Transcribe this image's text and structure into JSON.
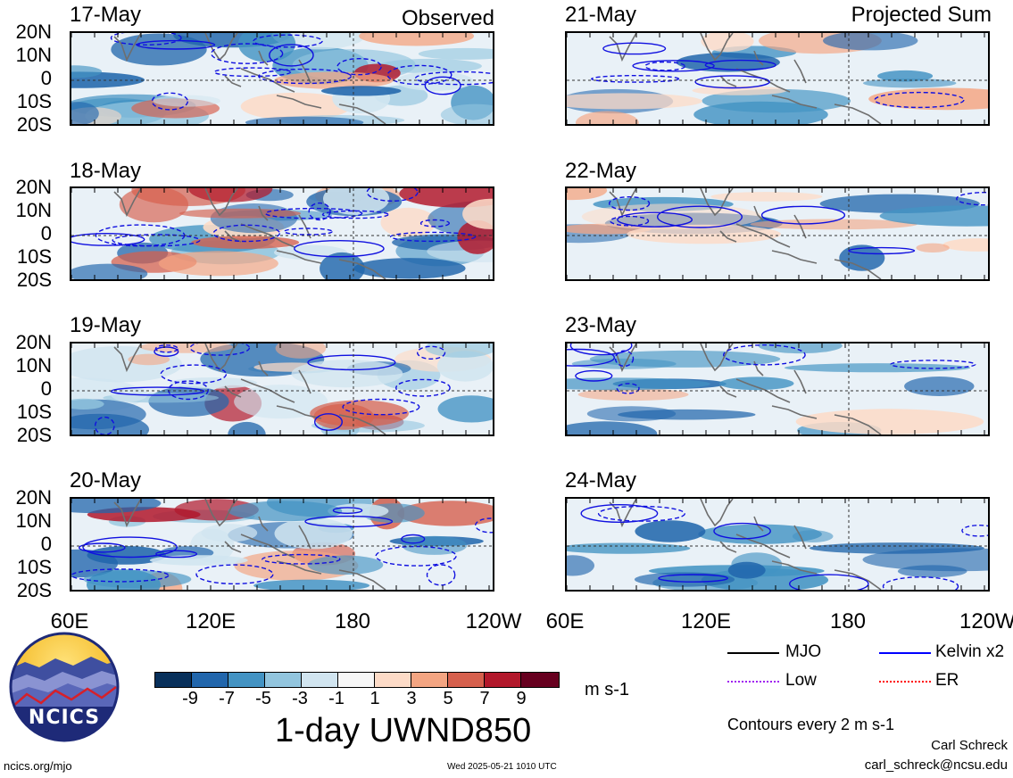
{
  "headers": {
    "left": "Observed",
    "right": "Projected Sum"
  },
  "panels": {
    "observed": [
      "17-May",
      "18-May",
      "19-May",
      "20-May"
    ],
    "projected": [
      "21-May",
      "22-May",
      "23-May",
      "24-May"
    ]
  },
  "lat_labels": [
    "20N",
    "10N",
    "0",
    "10S",
    "20S"
  ],
  "lon_labels": [
    "60E",
    "120E",
    "180",
    "120W"
  ],
  "colorbar": {
    "labels": [
      "-9",
      "-7",
      "-5",
      "-3",
      "-1",
      "1",
      "3",
      "5",
      "7",
      "9"
    ],
    "colors": [
      "#08305b",
      "#2166ac",
      "#4393c3",
      "#92c5de",
      "#d1e5f0",
      "#f7f7f7",
      "#fddbc7",
      "#f4a582",
      "#d6604d",
      "#b2182b",
      "#67001f"
    ],
    "units": "m s-1",
    "title": "1-day UWND850"
  },
  "legend": {
    "mjo": "MJO",
    "kelvin": "Kelvin x2",
    "low": "Low",
    "er": "ER",
    "colors": {
      "mjo": "#000000",
      "kelvin": "#0000ff",
      "low": "#a020f0",
      "er": "#ff0000"
    },
    "contours": "Contours every 2 m s-1"
  },
  "logo": {
    "text": "NCICS"
  },
  "footer": {
    "url": "ncics.org/mjo",
    "timestamp": "Wed 2025-05-21 1010 UTC",
    "author": "Carl Schreck",
    "email": "carl_schreck@ncsu.edu"
  }
}
